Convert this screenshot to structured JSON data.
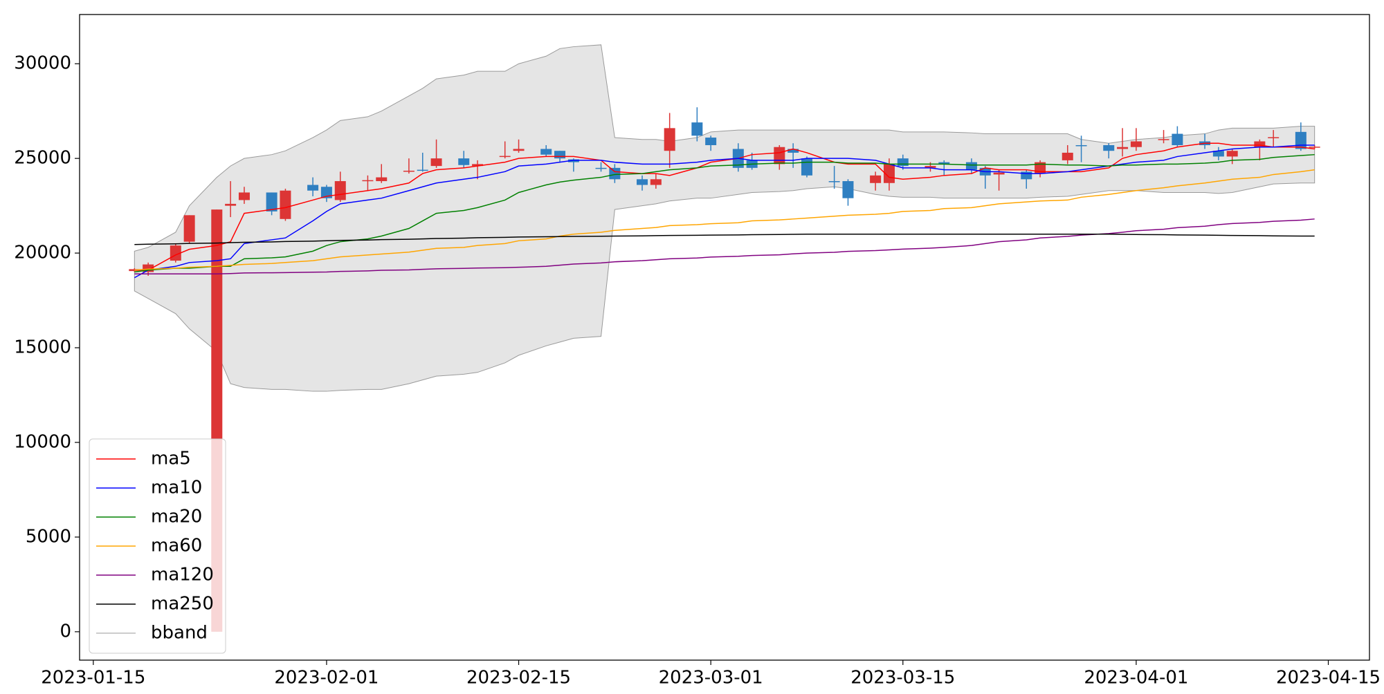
{
  "chart_data": {
    "type": "candlestick",
    "x": [
      "2023-01-18",
      "2023-01-19",
      "2023-01-21",
      "2023-01-22",
      "2023-01-24",
      "2023-01-25",
      "2023-01-26",
      "2023-01-28",
      "2023-01-29",
      "2023-01-31",
      "2023-02-01",
      "2023-02-02",
      "2023-02-04",
      "2023-02-05",
      "2023-02-07",
      "2023-02-08",
      "2023-02-09",
      "2023-02-11",
      "2023-02-12",
      "2023-02-14",
      "2023-02-15",
      "2023-02-17",
      "2023-02-18",
      "2023-02-19",
      "2023-02-21",
      "2023-02-22",
      "2023-02-24",
      "2023-02-25",
      "2023-02-26",
      "2023-02-28",
      "2023-03-01",
      "2023-03-03",
      "2023-03-04",
      "2023-03-06",
      "2023-03-07",
      "2023-03-08",
      "2023-03-10",
      "2023-03-11",
      "2023-03-13",
      "2023-03-14",
      "2023-03-15",
      "2023-03-17",
      "2023-03-18",
      "2023-03-20",
      "2023-03-21",
      "2023-03-22",
      "2023-03-24",
      "2023-03-25",
      "2023-03-27",
      "2023-03-28",
      "2023-03-30",
      "2023-03-31",
      "2023-04-01",
      "2023-04-03",
      "2023-04-04",
      "2023-04-06",
      "2023-04-07",
      "2023-04-08",
      "2023-04-10",
      "2023-04-11",
      "2023-04-13",
      "2023-04-14"
    ],
    "open": [
      19050,
      19000,
      19600,
      20600,
      0,
      22500,
      22800,
      23200,
      21800,
      23600,
      23500,
      22800,
      23800,
      23800,
      24300,
      24400,
      24600,
      25000,
      24600,
      25100,
      25400,
      25500,
      25400,
      24950,
      24500,
      24500,
      23900,
      23600,
      25400,
      26900,
      26100,
      25500,
      24900,
      24700,
      25500,
      25000,
      23800,
      23800,
      23700,
      23700,
      25000,
      24500,
      24800,
      24800,
      24500,
      24150,
      24300,
      24200,
      24900,
      25700,
      25700,
      25500,
      25600,
      26000,
      26300,
      25900,
      25400,
      25100,
      25600,
      26100,
      26400,
      25600
    ],
    "high": [
      19200,
      19500,
      20500,
      22000,
      22300,
      23800,
      23500,
      23200,
      23400,
      24000,
      23600,
      24300,
      24100,
      24700,
      25000,
      25300,
      26000,
      25400,
      24900,
      25900,
      26000,
      25700,
      25400,
      25000,
      24800,
      24700,
      24100,
      24200,
      27400,
      27700,
      26200,
      25800,
      25300,
      25700,
      25800,
      25100,
      24600,
      23900,
      24300,
      25000,
      25200,
      24800,
      24900,
      25000,
      24600,
      24400,
      24400,
      24900,
      25700,
      26200,
      25800,
      26600,
      26600,
      26500,
      26700,
      26300,
      25600,
      25500,
      26000,
      26500,
      26900,
      25700
    ],
    "low": [
      19000,
      18800,
      19500,
      20500,
      0,
      21900,
      22600,
      22000,
      21700,
      23000,
      22700,
      22700,
      23300,
      23700,
      24200,
      24300,
      24500,
      24500,
      23900,
      25000,
      25300,
      25100,
      24800,
      24300,
      24300,
      23700,
      23300,
      23400,
      24500,
      25900,
      25400,
      24300,
      24400,
      24400,
      24500,
      24000,
      23400,
      22500,
      23300,
      23300,
      24400,
      24300,
      24100,
      24200,
      23400,
      23300,
      23400,
      24000,
      24700,
      24800,
      25000,
      25100,
      25400,
      25800,
      25600,
      25500,
      24900,
      24700,
      24900,
      25600,
      25400,
      25500
    ],
    "close": [
      19150,
      19400,
      20400,
      22000,
      22300,
      22600,
      23200,
      22200,
      23300,
      23300,
      22900,
      23800,
      23850,
      24000,
      24350,
      24380,
      25000,
      24650,
      24700,
      25130,
      25500,
      25200,
      25000,
      24800,
      24450,
      23900,
      23600,
      23900,
      26600,
      26200,
      25700,
      24500,
      24500,
      25600,
      25300,
      24100,
      23780,
      22900,
      24100,
      24700,
      24600,
      24600,
      24700,
      24400,
      24100,
      24250,
      23900,
      24800,
      25300,
      25680,
      25400,
      25600,
      25900,
      26020,
      25700,
      25700,
      25100,
      25400,
      25900,
      26120,
      25500,
      25620
    ],
    "up_color": "#dc3535",
    "down_color": "#2f7fc1",
    "series": [
      {
        "name": "ma5",
        "color": "#ff0000",
        "values": [
          19100,
          19100,
          19900,
          20200,
          20400,
          20600,
          22100,
          22300,
          22400,
          22800,
          23000,
          23100,
          23300,
          23400,
          23700,
          24200,
          24400,
          24500,
          24600,
          24800,
          25000,
          25100,
          25100,
          25100,
          24900,
          24300,
          24200,
          24200,
          24100,
          24500,
          24800,
          25000,
          25200,
          25300,
          25500,
          25300,
          24800,
          24700,
          24700,
          24000,
          23900,
          24000,
          24100,
          24200,
          24500,
          24400,
          24400,
          24300,
          24300,
          24300,
          24500,
          25000,
          25200,
          25400,
          25600,
          25800,
          25800,
          25700,
          25700,
          25600,
          25600,
          25500
        ]
      },
      {
        "name": "ma10",
        "color": "#0000ff",
        "values": [
          18700,
          19100,
          19300,
          19500,
          19600,
          19700,
          20500,
          20700,
          20800,
          21700,
          22200,
          22600,
          22800,
          22900,
          23300,
          23500,
          23700,
          23900,
          24000,
          24300,
          24600,
          24700,
          24800,
          24900,
          24900,
          24800,
          24700,
          24700,
          24700,
          24800,
          24900,
          25000,
          24900,
          24900,
          24900,
          25000,
          25000,
          25000,
          24900,
          24700,
          24500,
          24500,
          24400,
          24400,
          24300,
          24300,
          24200,
          24200,
          24300,
          24400,
          24600,
          24700,
          24800,
          24900,
          25100,
          25300,
          25400,
          25500,
          25600,
          25600,
          25700,
          25700
        ]
      },
      {
        "name": "ma20",
        "color": "#008000",
        "values": [
          19000,
          19100,
          19200,
          19200,
          19300,
          19300,
          19700,
          19750,
          19800,
          20100,
          20400,
          20600,
          20750,
          20900,
          21300,
          21700,
          22100,
          22250,
          22400,
          22800,
          23200,
          23600,
          23750,
          23850,
          24000,
          24150,
          24200,
          24300,
          24400,
          24500,
          24600,
          24650,
          24700,
          24750,
          24750,
          24800,
          24800,
          24750,
          24750,
          24700,
          24700,
          24700,
          24700,
          24650,
          24650,
          24650,
          24650,
          24700,
          24650,
          24650,
          24600,
          24650,
          24650,
          24700,
          24700,
          24750,
          24800,
          24900,
          24950,
          25050,
          25150,
          25200
        ]
      },
      {
        "name": "ma60",
        "color": "#ffa500",
        "values": [
          19100,
          19150,
          19200,
          19250,
          19300,
          19350,
          19400,
          19450,
          19500,
          19600,
          19700,
          19800,
          19900,
          19950,
          20050,
          20150,
          20250,
          20300,
          20400,
          20500,
          20650,
          20750,
          20900,
          21000,
          21100,
          21200,
          21300,
          21350,
          21450,
          21500,
          21550,
          21600,
          21700,
          21750,
          21800,
          21850,
          21950,
          22000,
          22050,
          22100,
          22200,
          22250,
          22350,
          22400,
          22500,
          22600,
          22700,
          22750,
          22800,
          22950,
          23100,
          23200,
          23300,
          23450,
          23550,
          23700,
          23800,
          23900,
          24000,
          24150,
          24300,
          24400
        ]
      },
      {
        "name": "ma120",
        "color": "#800080",
        "values": [
          18900,
          18900,
          18900,
          18900,
          18900,
          18920,
          18950,
          18960,
          18970,
          18990,
          19000,
          19030,
          19060,
          19090,
          19110,
          19140,
          19170,
          19190,
          19210,
          19230,
          19250,
          19300,
          19360,
          19420,
          19480,
          19540,
          19600,
          19650,
          19700,
          19740,
          19790,
          19830,
          19870,
          19910,
          19960,
          20000,
          20040,
          20090,
          20130,
          20170,
          20210,
          20260,
          20300,
          20400,
          20500,
          20600,
          20700,
          20800,
          20880,
          20950,
          21030,
          21100,
          21180,
          21260,
          21340,
          21420,
          21500,
          21560,
          21620,
          21680,
          21740,
          21800
        ]
      },
      {
        "name": "ma250",
        "color": "#000000",
        "values": [
          20450,
          20470,
          20490,
          20510,
          20530,
          20550,
          20570,
          20590,
          20610,
          20630,
          20650,
          20670,
          20690,
          20710,
          20730,
          20750,
          20770,
          20790,
          20810,
          20830,
          20850,
          20860,
          20870,
          20880,
          20890,
          20900,
          20910,
          20920,
          20930,
          20940,
          20950,
          20960,
          20970,
          20980,
          20990,
          21000,
          21000,
          21000,
          21000,
          21000,
          21000,
          21000,
          21000,
          21000,
          21000,
          21000,
          21000,
          21000,
          21000,
          21000,
          21000,
          20990,
          20980,
          20970,
          20960,
          20950,
          20940,
          20930,
          20920,
          20910,
          20900,
          20900
        ]
      },
      {
        "name": "bband",
        "color": "#999999",
        "fill": "#e5e5e5",
        "upper": [
          20100,
          20300,
          21100,
          22500,
          24000,
          24600,
          25000,
          25200,
          25400,
          26100,
          26500,
          27000,
          27200,
          27500,
          28300,
          28700,
          29200,
          29400,
          29600,
          29600,
          30000,
          30400,
          30800,
          30900,
          31000,
          26100,
          26000,
          26000,
          25900,
          26100,
          26400,
          26500,
          26500,
          26500,
          26500,
          26500,
          26500,
          26500,
          26500,
          26500,
          26400,
          26400,
          26400,
          26350,
          26300,
          26300,
          26300,
          26300,
          26300,
          26000,
          25800,
          25900,
          26000,
          26100,
          26200,
          26300,
          26500,
          26600,
          26600,
          26600,
          26700,
          26700
        ],
        "lower": [
          18000,
          17600,
          16800,
          16000,
          14800,
          13100,
          12900,
          12800,
          12800,
          12700,
          12700,
          12750,
          12800,
          12800,
          13100,
          13300,
          13500,
          13600,
          13700,
          14200,
          14600,
          15100,
          15300,
          15500,
          15600,
          22300,
          22500,
          22600,
          22750,
          22900,
          22900,
          23100,
          23200,
          23250,
          23300,
          23400,
          23500,
          23400,
          23100,
          23000,
          22950,
          22950,
          22900,
          22900,
          22900,
          22900,
          22900,
          22950,
          23000,
          23100,
          23300,
          23300,
          23300,
          23200,
          23200,
          23200,
          23150,
          23200,
          23500,
          23650,
          23700,
          23700
        ]
      }
    ],
    "xlim": [
      "2023-01-14",
      "2023-04-18"
    ],
    "xticks": [
      "2023-01-15",
      "2023-02-01",
      "2023-02-15",
      "2023-03-01",
      "2023-03-15",
      "2023-04-01",
      "2023-04-15"
    ],
    "ylim": [
      -1500,
      32600
    ],
    "yticks": [
      0,
      5000,
      10000,
      15000,
      20000,
      25000,
      30000
    ],
    "legend": "lower left"
  }
}
